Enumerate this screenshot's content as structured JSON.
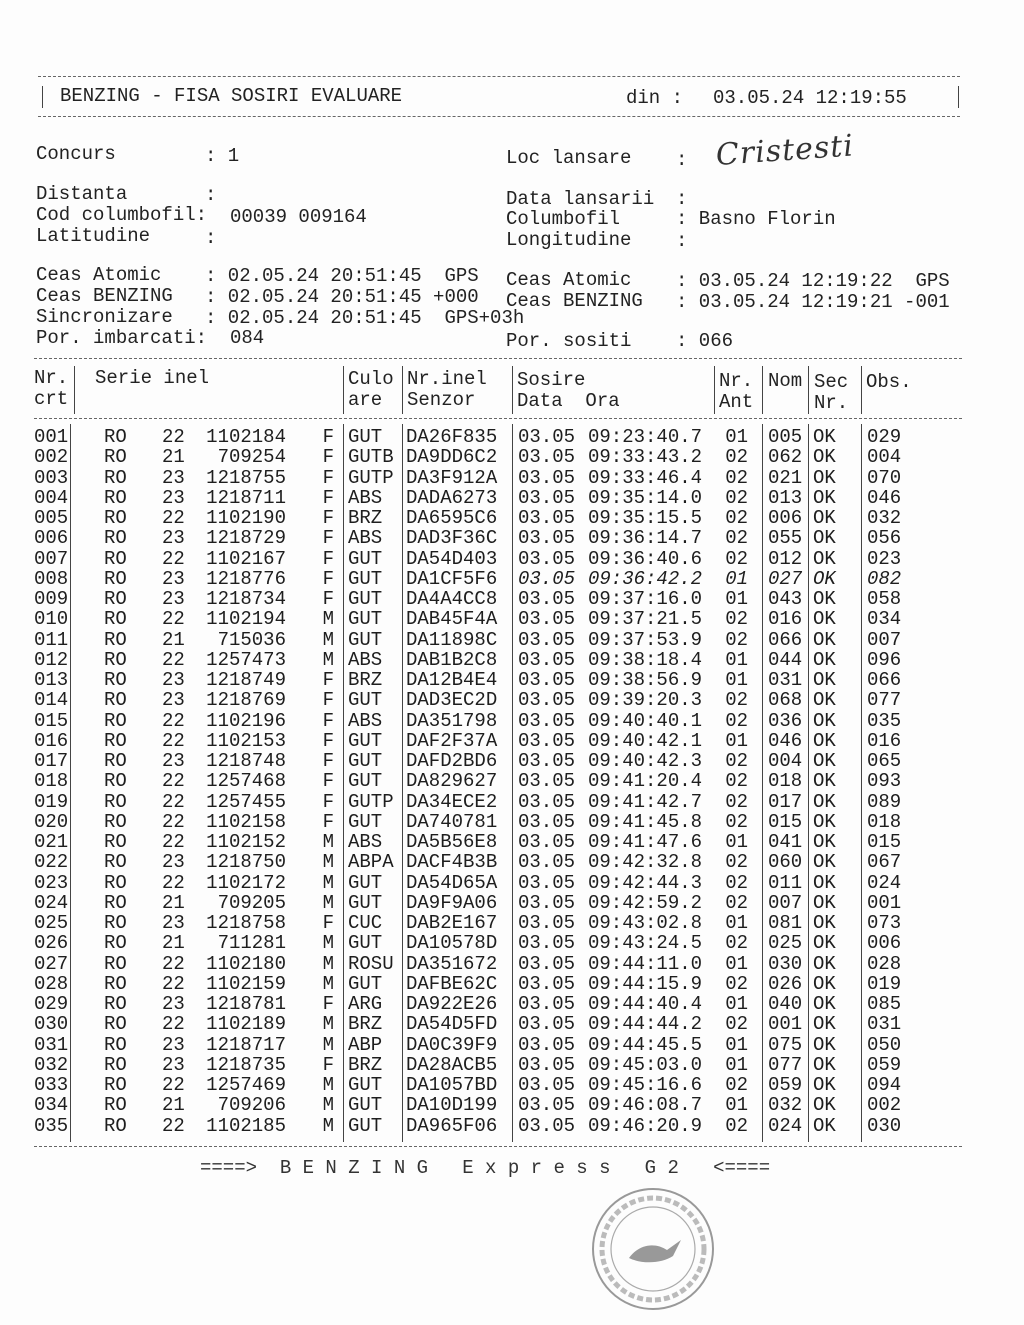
{
  "header": {
    "title": "BENZING - FISA SOSIRI EVALUARE",
    "din_label": "din :",
    "din_value": "03.05.24 12:19:55"
  },
  "info": {
    "concurs_label": "Concurs",
    "concurs_value": ": 1",
    "loc_label": "Loc lansare",
    "loc_colon": ":",
    "loc_signature": "Cristesti",
    "distanta_label": "Distanta",
    "distanta_value": ":",
    "data_lansarii_label": "Data lansarii",
    "data_lansarii_value": ":",
    "cod_label": "Cod columbofil:",
    "cod_value": "00039 009164",
    "columbofil_label": "Columbofil",
    "columbofil_value": ": Basno Florin",
    "latitudine_label": "Latitudine",
    "latitudine_value": ":",
    "longitudine_label": "Longitudine",
    "longitudine_value": ":",
    "left_clock": [
      {
        "label": "Ceas Atomic",
        "value": ": 02.05.24 20:51:45  GPS"
      },
      {
        "label": "Ceas BENZING",
        "value": ": 02.05.24 20:51:45 +000"
      },
      {
        "label": "Sincronizare",
        "value": ": 02.05.24 20:51:45  GPS+03h"
      }
    ],
    "right_clock": [
      {
        "label": "Ceas Atomic",
        "value": ": 03.05.24 12:19:22  GPS"
      },
      {
        "label": "Ceas BENZING",
        "value": ": 03.05.24 12:19:21 -001"
      }
    ],
    "imbarcati_label": "Por. imbarcati:",
    "imbarcati_value": "084",
    "sositi_label": "Por. sositi",
    "sositi_value": ": 066"
  },
  "table": {
    "headers": {
      "nr1": "Nr.",
      "nr2": "crt",
      "serie": "Serie inel",
      "cul1": "Culo",
      "cul2": "are",
      "inel1": "Nr.inel",
      "inel2": "Senzor",
      "sos1": "Sosire",
      "sos2": "Data  Ora",
      "ant1": "Nr.",
      "ant2": "Ant",
      "nom": "Nom",
      "sec1": "Sec",
      "sec2": "Nr.",
      "obs": "Obs."
    },
    "rows": [
      [
        "001",
        "RO",
        "22",
        "1102184",
        "F",
        "GUT",
        "DA26F835",
        "03.05",
        "09:23:40.7",
        "01",
        "005",
        "OK",
        "029"
      ],
      [
        "002",
        "RO",
        "21",
        "709254",
        "F",
        "GUTB",
        "DA9DD6C2",
        "03.05",
        "09:33:43.2",
        "02",
        "062",
        "OK",
        "004"
      ],
      [
        "003",
        "RO",
        "23",
        "1218755",
        "F",
        "GUTP",
        "DA3F912A",
        "03.05",
        "09:33:46.4",
        "02",
        "021",
        "OK",
        "070"
      ],
      [
        "004",
        "RO",
        "23",
        "1218711",
        "F",
        "ABS",
        "DADA6273",
        "03.05",
        "09:35:14.0",
        "02",
        "013",
        "OK",
        "046"
      ],
      [
        "005",
        "RO",
        "22",
        "1102190",
        "F",
        "BRZ",
        "DA6595C6",
        "03.05",
        "09:35:15.5",
        "02",
        "006",
        "OK",
        "032"
      ],
      [
        "006",
        "RO",
        "23",
        "1218729",
        "F",
        "ABS",
        "DAD3F36C",
        "03.05",
        "09:36:14.7",
        "02",
        "055",
        "OK",
        "056"
      ],
      [
        "007",
        "RO",
        "22",
        "1102167",
        "F",
        "GUT",
        "DA54D403",
        "03.05",
        "09:36:40.6",
        "02",
        "012",
        "OK",
        "023"
      ],
      [
        "008",
        "RO",
        "23",
        "1218776",
        "F",
        "GUT",
        "DA1CF5F6",
        "03.05",
        "09:36:42.2",
        "01",
        "027",
        "OK",
        "082"
      ],
      [
        "009",
        "RO",
        "23",
        "1218734",
        "F",
        "GUT",
        "DA4A4CC8",
        "03.05",
        "09:37:16.0",
        "01",
        "043",
        "OK",
        "058"
      ],
      [
        "010",
        "RO",
        "22",
        "1102194",
        "M",
        "GUT",
        "DAB45F4A",
        "03.05",
        "09:37:21.5",
        "02",
        "016",
        "OK",
        "034"
      ],
      [
        "011",
        "RO",
        "21",
        "715036",
        "M",
        "GUT",
        "DA11898C",
        "03.05",
        "09:37:53.9",
        "02",
        "066",
        "OK",
        "007"
      ],
      [
        "012",
        "RO",
        "22",
        "1257473",
        "M",
        "ABS",
        "DAB1B2C8",
        "03.05",
        "09:38:18.4",
        "01",
        "044",
        "OK",
        "096"
      ],
      [
        "013",
        "RO",
        "23",
        "1218749",
        "F",
        "BRZ",
        "DA12B4E4",
        "03.05",
        "09:38:56.9",
        "01",
        "031",
        "OK",
        "066"
      ],
      [
        "014",
        "RO",
        "23",
        "1218769",
        "F",
        "GUT",
        "DAD3EC2D",
        "03.05",
        "09:39:20.3",
        "02",
        "068",
        "OK",
        "077"
      ],
      [
        "015",
        "RO",
        "22",
        "1102196",
        "F",
        "ABS",
        "DA351798",
        "03.05",
        "09:40:40.1",
        "02",
        "036",
        "OK",
        "035"
      ],
      [
        "016",
        "RO",
        "22",
        "1102153",
        "F",
        "GUT",
        "DAF2F37A",
        "03.05",
        "09:40:42.1",
        "01",
        "046",
        "OK",
        "016"
      ],
      [
        "017",
        "RO",
        "23",
        "1218748",
        "F",
        "GUT",
        "DAFD2BD6",
        "03.05",
        "09:40:42.3",
        "02",
        "004",
        "OK",
        "065"
      ],
      [
        "018",
        "RO",
        "22",
        "1257468",
        "F",
        "GUT",
        "DA829627",
        "03.05",
        "09:41:20.4",
        "02",
        "018",
        "OK",
        "093"
      ],
      [
        "019",
        "RO",
        "22",
        "1257455",
        "F",
        "GUTP",
        "DA34ECE2",
        "03.05",
        "09:41:42.7",
        "02",
        "017",
        "OK",
        "089"
      ],
      [
        "020",
        "RO",
        "22",
        "1102158",
        "F",
        "GUT",
        "DA740781",
        "03.05",
        "09:41:45.8",
        "02",
        "015",
        "OK",
        "018"
      ],
      [
        "021",
        "RO",
        "22",
        "1102152",
        "M",
        "ABS",
        "DA5B56E8",
        "03.05",
        "09:41:47.6",
        "01",
        "041",
        "OK",
        "015"
      ],
      [
        "022",
        "RO",
        "23",
        "1218750",
        "M",
        "ABPA",
        "DACF4B3B",
        "03.05",
        "09:42:32.8",
        "02",
        "060",
        "OK",
        "067"
      ],
      [
        "023",
        "RO",
        "22",
        "1102172",
        "M",
        "GUT",
        "DA54D65A",
        "03.05",
        "09:42:44.3",
        "02",
        "011",
        "OK",
        "024"
      ],
      [
        "024",
        "RO",
        "21",
        "709205",
        "M",
        "GUT",
        "DA9F9A06",
        "03.05",
        "09:42:59.2",
        "02",
        "007",
        "OK",
        "001"
      ],
      [
        "025",
        "RO",
        "23",
        "1218758",
        "F",
        "CUC",
        "DAB2E167",
        "03.05",
        "09:43:02.8",
        "01",
        "081",
        "OK",
        "073"
      ],
      [
        "026",
        "RO",
        "21",
        "711281",
        "M",
        "GUT",
        "DA10578D",
        "03.05",
        "09:43:24.5",
        "02",
        "025",
        "OK",
        "006"
      ],
      [
        "027",
        "RO",
        "22",
        "1102180",
        "M",
        "ROSU",
        "DA351672",
        "03.05",
        "09:44:11.0",
        "01",
        "030",
        "OK",
        "028"
      ],
      [
        "028",
        "RO",
        "22",
        "1102159",
        "M",
        "GUT",
        "DAFBE62C",
        "03.05",
        "09:44:15.9",
        "02",
        "026",
        "OK",
        "019"
      ],
      [
        "029",
        "RO",
        "23",
        "1218781",
        "F",
        "ARG",
        "DA922E26",
        "03.05",
        "09:44:40.4",
        "01",
        "040",
        "OK",
        "085"
      ],
      [
        "030",
        "RO",
        "22",
        "1102189",
        "M",
        "BRZ",
        "DA54D5FD",
        "03.05",
        "09:44:44.2",
        "02",
        "001",
        "OK",
        "031"
      ],
      [
        "031",
        "RO",
        "23",
        "1218717",
        "M",
        "ABP",
        "DA0C39F9",
        "03.05",
        "09:44:45.5",
        "01",
        "075",
        "OK",
        "050"
      ],
      [
        "032",
        "RO",
        "23",
        "1218735",
        "F",
        "BRZ",
        "DA28ACB5",
        "03.05",
        "09:45:03.0",
        "01",
        "077",
        "OK",
        "059"
      ],
      [
        "033",
        "RO",
        "22",
        "1257469",
        "M",
        "GUT",
        "DA1057BD",
        "03.05",
        "09:45:16.6",
        "02",
        "059",
        "OK",
        "094"
      ],
      [
        "034",
        "RO",
        "21",
        "709206",
        "M",
        "GUT",
        "DA10D199",
        "03.05",
        "09:46:08.7",
        "01",
        "032",
        "OK",
        "002"
      ],
      [
        "035",
        "RO",
        "22",
        "1102185",
        "M",
        "GUT",
        "DA965F06",
        "03.05",
        "09:46:20.9",
        "02",
        "024",
        "OK",
        "030"
      ]
    ]
  },
  "footer": {
    "text": "====>  B E N Z I N G   E x p r e s s   G 2   <===="
  },
  "stamp": {
    "text": "ASOCIATIA COLUMBOFILA BRAILA",
    "color": "#8a8a8a"
  }
}
